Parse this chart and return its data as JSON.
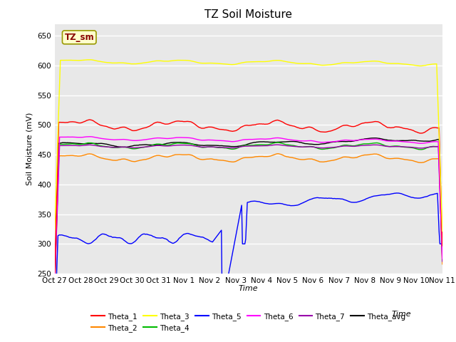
{
  "title": "TZ Soil Moisture",
  "xlabel": "Time",
  "ylabel": "Soil Moisture (mV)",
  "ylim": [
    250,
    670
  ],
  "yticks": [
    250,
    300,
    350,
    400,
    450,
    500,
    550,
    600,
    650
  ],
  "fig_facecolor": "#ffffff",
  "plot_bg_color": "#e8e8e8",
  "label_box_text": "TZ_sm",
  "label_box_facecolor": "#ffffcc",
  "label_box_edgecolor": "#999900",
  "label_box_textcolor": "#880000",
  "series_colors": {
    "Theta_1": "#ff0000",
    "Theta_2": "#ff8800",
    "Theta_3": "#ffff00",
    "Theta_4": "#00bb00",
    "Theta_5": "#0000ff",
    "Theta_6": "#ff00ff",
    "Theta_7": "#9900aa",
    "Theta_avg": "#000000"
  },
  "n_points": 480,
  "tick_dates": [
    "Oct 27",
    "Oct 28",
    "Oct 29",
    "Oct 30",
    "Oct 31",
    "Nov 1",
    "Nov 2",
    "Nov 3",
    "Nov 4",
    "Nov 5",
    "Nov 6",
    "Nov 7",
    "Nov 8",
    "Nov 9",
    "Nov 10",
    "Nov 11"
  ],
  "legend_row1": [
    {
      "label": "Theta_1",
      "color": "#ff0000"
    },
    {
      "label": "Theta_2",
      "color": "#ff8800"
    },
    {
      "label": "Theta_3",
      "color": "#ffff00"
    },
    {
      "label": "Theta_4",
      "color": "#00bb00"
    },
    {
      "label": "Theta_5",
      "color": "#0000ff"
    },
    {
      "label": "Theta_6",
      "color": "#ff00ff"
    }
  ],
  "legend_row2": [
    {
      "label": "Theta_7",
      "color": "#9900aa"
    },
    {
      "label": "Theta_avg",
      "color": "#000000"
    }
  ]
}
